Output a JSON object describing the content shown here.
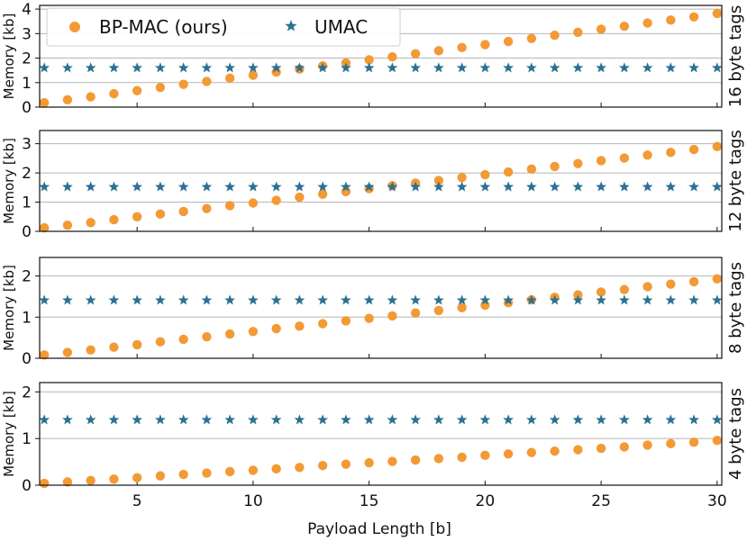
{
  "chart_data": {
    "type": "scatter",
    "xlabel": "Payload Length [b]",
    "ylabel": "Memory [kb]",
    "x": [
      1,
      2,
      3,
      4,
      5,
      6,
      7,
      8,
      9,
      10,
      11,
      12,
      13,
      14,
      15,
      16,
      17,
      18,
      19,
      20,
      21,
      22,
      23,
      24,
      25,
      26,
      27,
      28,
      29,
      30
    ],
    "xlim": [
      0.8,
      30.2
    ],
    "xticks": [
      5,
      10,
      15,
      20,
      25,
      30
    ],
    "grid": "horizontal",
    "legend": {
      "placement": "top-left",
      "entries": [
        {
          "name": "BP-MAC (ours)",
          "marker": "circle",
          "color": "#f39a35"
        },
        {
          "name": "UMAC",
          "marker": "star",
          "color": "#2b7193"
        }
      ]
    },
    "colors": {
      "bpmac": "#f39a35",
      "umac": "#2b7193",
      "grid": "#b5b5b5",
      "axis": "#111111"
    },
    "panels": [
      {
        "label": "16 byte tags",
        "ylim": [
          0,
          4.15
        ],
        "yticks": [
          0,
          1,
          2,
          3,
          4
        ],
        "series": [
          {
            "name": "BP-MAC (ours)",
            "values": [
              0.18,
              0.3,
              0.42,
              0.55,
              0.67,
              0.8,
              0.93,
              1.05,
              1.18,
              1.3,
              1.43,
              1.55,
              1.68,
              1.8,
              1.93,
              2.05,
              2.18,
              2.3,
              2.43,
              2.55,
              2.68,
              2.8,
              2.93,
              3.05,
              3.18,
              3.3,
              3.43,
              3.55,
              3.68,
              3.82
            ]
          },
          {
            "name": "UMAC",
            "values": [
              1.6,
              1.6,
              1.6,
              1.6,
              1.6,
              1.6,
              1.6,
              1.6,
              1.6,
              1.6,
              1.6,
              1.6,
              1.6,
              1.6,
              1.6,
              1.6,
              1.6,
              1.6,
              1.6,
              1.6,
              1.6,
              1.6,
              1.6,
              1.6,
              1.6,
              1.6,
              1.6,
              1.6,
              1.6,
              1.6
            ]
          }
        ]
      },
      {
        "label": "12 byte tags",
        "ylim": [
          0,
          3.45
        ],
        "yticks": [
          0,
          1,
          2,
          3
        ],
        "series": [
          {
            "name": "BP-MAC (ours)",
            "values": [
              0.12,
              0.21,
              0.3,
              0.4,
              0.5,
              0.59,
              0.68,
              0.78,
              0.88,
              0.97,
              1.06,
              1.17,
              1.27,
              1.36,
              1.46,
              1.56,
              1.65,
              1.74,
              1.84,
              1.94,
              2.03,
              2.13,
              2.22,
              2.32,
              2.42,
              2.51,
              2.61,
              2.7,
              2.8,
              2.9
            ]
          },
          {
            "name": "UMAC",
            "values": [
              1.52,
              1.52,
              1.52,
              1.52,
              1.52,
              1.52,
              1.52,
              1.52,
              1.52,
              1.52,
              1.52,
              1.52,
              1.52,
              1.52,
              1.52,
              1.52,
              1.52,
              1.52,
              1.52,
              1.52,
              1.52,
              1.52,
              1.52,
              1.52,
              1.52,
              1.52,
              1.52,
              1.52,
              1.52,
              1.52
            ]
          }
        ]
      },
      {
        "label": "8 byte tags",
        "ylim": [
          0,
          2.45
        ],
        "yticks": [
          0,
          1,
          2
        ],
        "series": [
          {
            "name": "BP-MAC (ours)",
            "values": [
              0.08,
              0.14,
              0.2,
              0.27,
              0.33,
              0.4,
              0.46,
              0.52,
              0.59,
              0.65,
              0.72,
              0.78,
              0.84,
              0.91,
              0.97,
              1.03,
              1.1,
              1.16,
              1.23,
              1.29,
              1.35,
              1.42,
              1.48,
              1.54,
              1.61,
              1.67,
              1.74,
              1.8,
              1.86,
              1.93
            ]
          },
          {
            "name": "UMAC",
            "values": [
              1.41,
              1.41,
              1.41,
              1.41,
              1.41,
              1.41,
              1.41,
              1.41,
              1.41,
              1.41,
              1.41,
              1.41,
              1.41,
              1.41,
              1.41,
              1.41,
              1.41,
              1.41,
              1.41,
              1.41,
              1.41,
              1.41,
              1.41,
              1.41,
              1.41,
              1.41,
              1.41,
              1.41,
              1.41,
              1.41
            ]
          }
        ]
      },
      {
        "label": "4 byte tags",
        "ylim": [
          0,
          2.2
        ],
        "yticks": [
          0,
          1,
          2
        ],
        "series": [
          {
            "name": "BP-MAC (ours)",
            "values": [
              0.04,
              0.07,
              0.1,
              0.13,
              0.16,
              0.2,
              0.23,
              0.26,
              0.29,
              0.32,
              0.35,
              0.38,
              0.42,
              0.45,
              0.48,
              0.51,
              0.54,
              0.57,
              0.6,
              0.64,
              0.67,
              0.7,
              0.73,
              0.76,
              0.79,
              0.82,
              0.86,
              0.89,
              0.92,
              0.96
            ]
          },
          {
            "name": "UMAC",
            "values": [
              1.4,
              1.4,
              1.4,
              1.4,
              1.4,
              1.4,
              1.4,
              1.4,
              1.4,
              1.4,
              1.4,
              1.4,
              1.4,
              1.4,
              1.4,
              1.4,
              1.4,
              1.4,
              1.4,
              1.4,
              1.4,
              1.4,
              1.4,
              1.4,
              1.4,
              1.4,
              1.4,
              1.4,
              1.4,
              1.4
            ]
          }
        ]
      }
    ]
  }
}
